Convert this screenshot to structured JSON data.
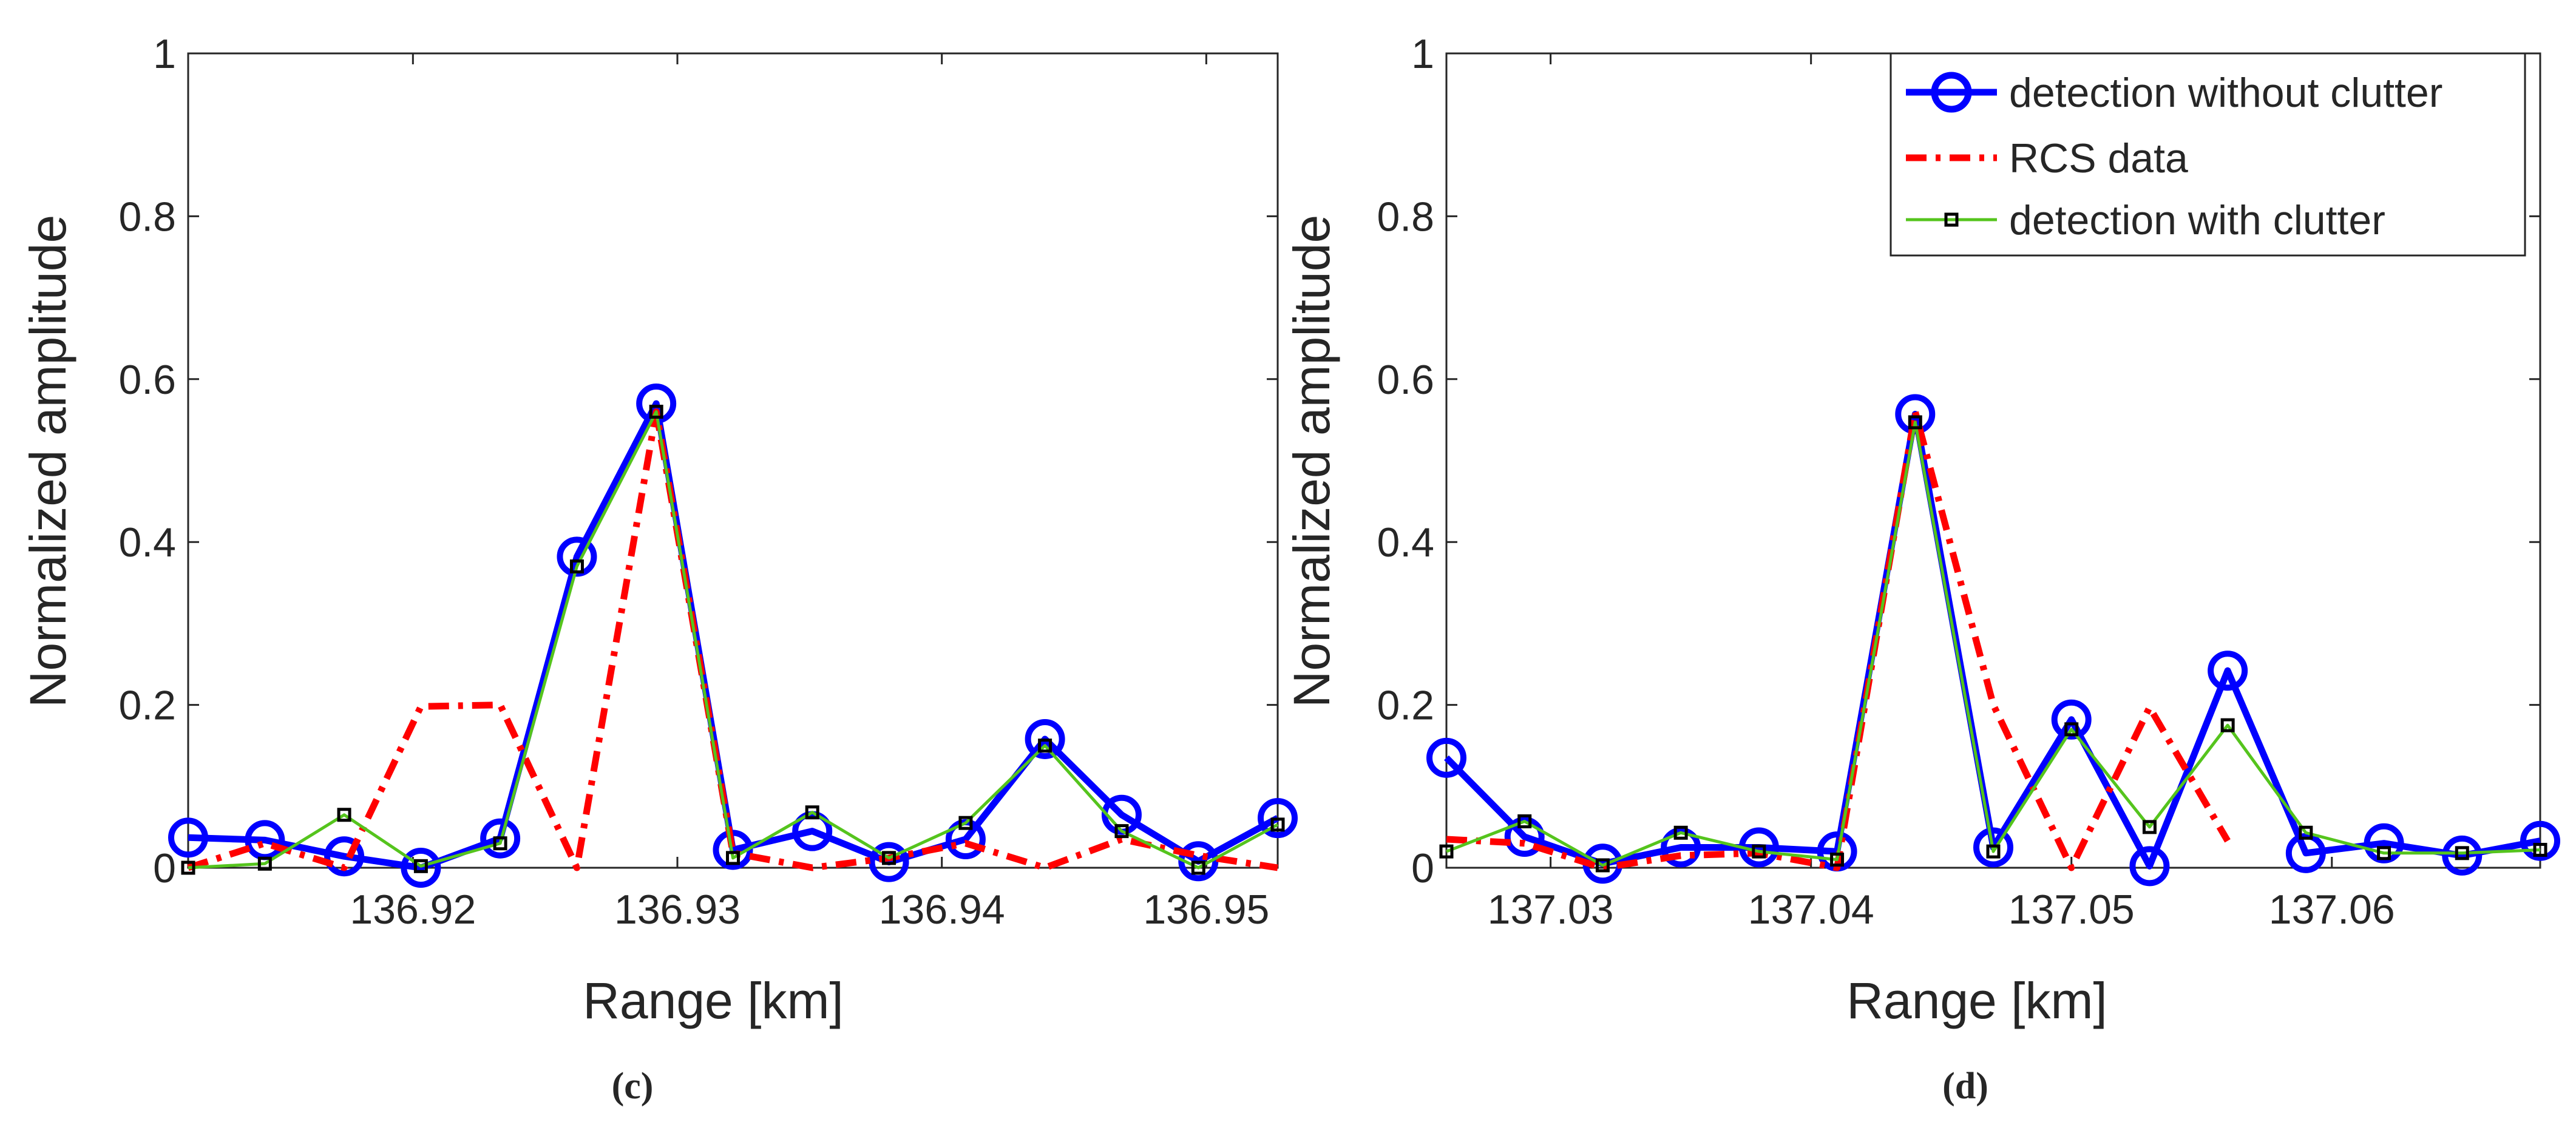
{
  "colors": {
    "detection_without_clutter": "#0000ff",
    "rcs_data": "#ff0000",
    "detection_with_clutter": "#55c41d",
    "marker_with_clutter": "#000000",
    "axes": "#262626"
  },
  "chart_data": [
    {
      "id": "c",
      "type": "line",
      "caption": "(c)",
      "xlabel": "Range [km]",
      "ylabel": "Normalized amplitude",
      "xlim": [
        136.9115,
        136.9527
      ],
      "ylim": [
        0,
        1
      ],
      "xticks": [
        {
          "value": 136.92,
          "label": "136.92"
        },
        {
          "value": 136.93,
          "label": "136.93"
        },
        {
          "value": 136.94,
          "label": "136.94"
        },
        {
          "value": 136.95,
          "label": "136.95"
        }
      ],
      "yticks": [
        {
          "value": 0,
          "label": "0"
        },
        {
          "value": 0.2,
          "label": "0.2"
        },
        {
          "value": 0.4,
          "label": "0.4"
        },
        {
          "value": 0.6,
          "label": "0.6"
        },
        {
          "value": 0.8,
          "label": "0.8"
        },
        {
          "value": 1,
          "label": "1"
        }
      ],
      "grid": false,
      "legend": null,
      "series": [
        {
          "name": "detection without clutter",
          "color": "#0000ff",
          "style": "solid-circle",
          "x": [
            136.9115,
            136.9144,
            136.9174,
            136.9203,
            136.9233,
            136.9262,
            136.9292,
            136.9321,
            136.9351,
            136.938,
            136.9409,
            136.9439,
            136.9468,
            136.9497,
            136.9527
          ],
          "y": [
            0.037,
            0.034,
            0.014,
            0.0,
            0.036,
            0.382,
            0.57,
            0.022,
            0.045,
            0.007,
            0.035,
            0.158,
            0.065,
            0.008,
            0.061
          ]
        },
        {
          "name": "RCS data",
          "color": "#ff0000",
          "style": "dashdot",
          "x": [
            136.9115,
            136.9144,
            136.9174,
            136.9203,
            136.9233,
            136.9262,
            136.9292,
            136.9321,
            136.9351,
            136.938,
            136.9409,
            136.9439,
            136.9468,
            136.9497,
            136.9527
          ],
          "y": [
            0.0,
            0.03,
            0.0,
            0.198,
            0.2,
            0.0,
            0.56,
            0.018,
            0.0,
            0.012,
            0.03,
            0.0,
            0.035,
            0.015,
            0.0
          ]
        },
        {
          "name": "detection with clutter",
          "color": "#55c41d",
          "style": "solid-square",
          "x": [
            136.9115,
            136.9144,
            136.9174,
            136.9203,
            136.9233,
            136.9262,
            136.9292,
            136.9321,
            136.9351,
            136.938,
            136.9409,
            136.9439,
            136.9468,
            136.9497,
            136.9527
          ],
          "y": [
            0.0,
            0.005,
            0.065,
            0.002,
            0.03,
            0.37,
            0.56,
            0.012,
            0.068,
            0.012,
            0.055,
            0.15,
            0.045,
            0.0,
            0.053
          ]
        }
      ]
    },
    {
      "id": "d",
      "type": "line",
      "caption": "(d)",
      "xlabel": "Range [km]",
      "ylabel": "Normalized amplitude",
      "xlim": [
        137.026,
        137.068
      ],
      "ylim": [
        0,
        1
      ],
      "xticks": [
        {
          "value": 137.03,
          "label": "137.03"
        },
        {
          "value": 137.04,
          "label": "137.04"
        },
        {
          "value": 137.05,
          "label": "137.05"
        },
        {
          "value": 137.06,
          "label": "137.06"
        }
      ],
      "yticks": [
        {
          "value": 0,
          "label": "0"
        },
        {
          "value": 0.2,
          "label": "0.2"
        },
        {
          "value": 0.4,
          "label": "0.4"
        },
        {
          "value": 0.6,
          "label": "0.6"
        },
        {
          "value": 0.8,
          "label": "0.8"
        },
        {
          "value": 1,
          "label": "1"
        }
      ],
      "grid": false,
      "legend": {
        "position": "top-right",
        "entries": [
          {
            "label": "detection without clutter",
            "series": 0
          },
          {
            "label": "RCS data",
            "series": 1
          },
          {
            "label": "detection with clutter",
            "series": 2
          }
        ]
      },
      "series": [
        {
          "name": "detection without clutter",
          "color": "#0000ff",
          "style": "solid-circle",
          "x": [
            137.026,
            137.029,
            137.032,
            137.035,
            137.038,
            137.041,
            137.044,
            137.047,
            137.05,
            137.053,
            137.056,
            137.059,
            137.062,
            137.065,
            137.068
          ],
          "y": [
            0.135,
            0.038,
            0.005,
            0.025,
            0.025,
            0.02,
            0.557,
            0.025,
            0.182,
            0.002,
            0.242,
            0.018,
            0.03,
            0.015,
            0.033
          ]
        },
        {
          "name": "RCS data",
          "color": "#ff0000",
          "style": "dashdot",
          "x": [
            137.026,
            137.029,
            137.032,
            137.035,
            137.038,
            137.041,
            137.044,
            137.047,
            137.05,
            137.053,
            137.056
          ],
          "y": [
            0.035,
            0.03,
            0.0,
            0.015,
            0.018,
            0.0,
            0.56,
            0.2,
            0.0,
            0.197,
            0.033
          ]
        },
        {
          "name": "detection with clutter",
          "color": "#55c41d",
          "style": "solid-square",
          "x": [
            137.026,
            137.029,
            137.032,
            137.035,
            137.038,
            137.041,
            137.044,
            137.047,
            137.05,
            137.053,
            137.056,
            137.059,
            137.062,
            137.065,
            137.068
          ],
          "y": [
            0.02,
            0.057,
            0.003,
            0.043,
            0.02,
            0.01,
            0.547,
            0.02,
            0.17,
            0.05,
            0.175,
            0.043,
            0.018,
            0.018,
            0.022
          ]
        }
      ]
    }
  ]
}
